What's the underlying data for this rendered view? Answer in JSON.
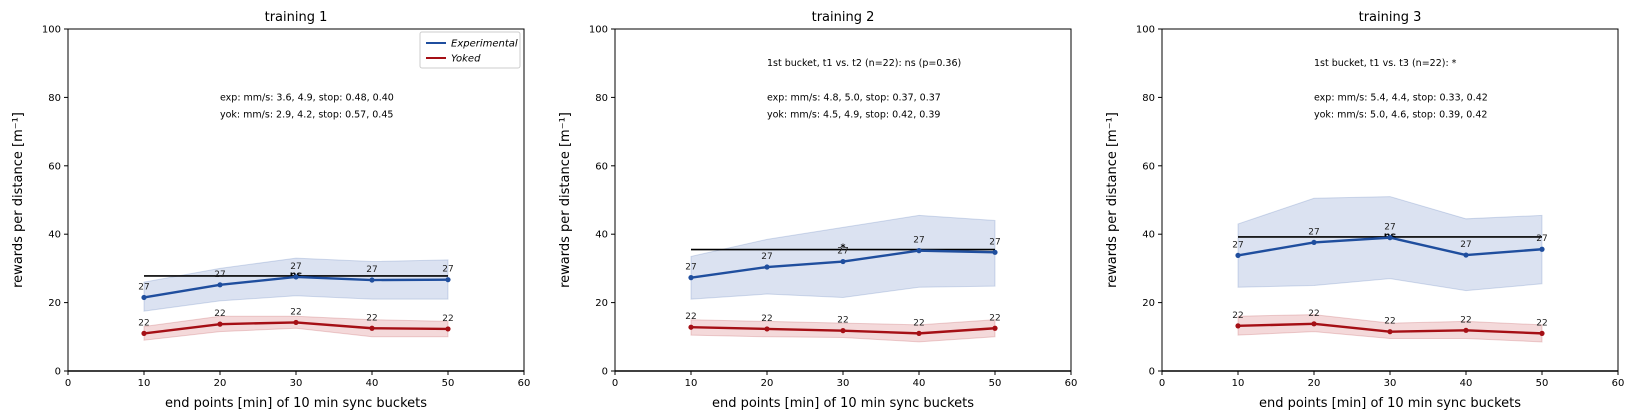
{
  "chart_data": [
    {
      "type": "line",
      "title": "training 1",
      "xlabel": "end points [min] of 10 min sync buckets",
      "ylabel": "rewards per distance [m⁻¹]",
      "xlim": [
        0,
        60
      ],
      "ylim": [
        0,
        100
      ],
      "xticks": [
        0,
        10,
        20,
        30,
        40,
        50,
        60
      ],
      "yticks": [
        0,
        20,
        40,
        60,
        80,
        100
      ],
      "x": [
        10,
        20,
        30,
        40,
        50
      ],
      "series": [
        {
          "name": "Experimental",
          "color": "#1f4e9e",
          "band_color": "#c5d1e8",
          "values": [
            21.5,
            25.2,
            27.5,
            26.6,
            26.7
          ],
          "lower": [
            17.5,
            20.5,
            22.0,
            21.0,
            21.0
          ],
          "upper": [
            26.0,
            30.0,
            33.0,
            32.0,
            32.5
          ],
          "n": [
            27,
            27,
            27,
            27,
            27
          ]
        },
        {
          "name": "Yoked",
          "color": "#a50f15",
          "band_color": "#eec1c3",
          "values": [
            11.0,
            13.7,
            14.2,
            12.5,
            12.3
          ],
          "lower": [
            9.0,
            11.5,
            12.5,
            10.0,
            10.0
          ],
          "upper": [
            13.0,
            16.0,
            16.0,
            15.0,
            14.5
          ],
          "n": [
            22,
            22,
            22,
            22,
            22
          ]
        }
      ],
      "significance": {
        "y": 27.8,
        "x_start": 10,
        "x_end": 50,
        "label": "ns",
        "label_x": 30
      },
      "annotations": [
        {
          "text": "exp: mm/s: 3.6, 4.9, stop: 0.48, 0.40",
          "x": 20,
          "y": 80
        },
        {
          "text": "yok: mm/s: 2.9, 4.2, stop: 0.57, 0.45",
          "x": 20,
          "y": 75
        }
      ],
      "legend": {
        "placement": "top-right",
        "entries": [
          "Experimental",
          "Yoked"
        ]
      },
      "grid": false
    },
    {
      "type": "line",
      "title": "training 2",
      "xlabel": "end points [min] of 10 min sync buckets",
      "ylabel": "rewards per distance [m⁻¹]",
      "xlim": [
        0,
        60
      ],
      "ylim": [
        0,
        100
      ],
      "xticks": [
        0,
        10,
        20,
        30,
        40,
        50,
        60
      ],
      "yticks": [
        0,
        20,
        40,
        60,
        80,
        100
      ],
      "x": [
        10,
        20,
        30,
        40,
        50
      ],
      "series": [
        {
          "name": "Experimental",
          "color": "#1f4e9e",
          "band_color": "#c5d1e8",
          "values": [
            27.3,
            30.4,
            32.0,
            35.2,
            34.7
          ],
          "lower": [
            21.0,
            22.5,
            21.5,
            24.5,
            24.8
          ],
          "upper": [
            33.5,
            38.5,
            42.0,
            45.5,
            44.0
          ],
          "n": [
            27,
            27,
            27,
            27,
            27
          ]
        },
        {
          "name": "Yoked",
          "color": "#a50f15",
          "band_color": "#eec1c3",
          "values": [
            12.8,
            12.3,
            11.8,
            11.0,
            12.5
          ],
          "lower": [
            10.5,
            10.0,
            9.8,
            8.5,
            10.0
          ],
          "upper": [
            15.0,
            14.5,
            14.0,
            13.5,
            15.0
          ],
          "n": [
            22,
            22,
            22,
            22,
            22
          ]
        }
      ],
      "significance": {
        "y": 35.5,
        "x_start": 10,
        "x_end": 50,
        "label": "*",
        "label_x": 30
      },
      "annotations": [
        {
          "text": "1st bucket, t1 vs. t2 (n=22): ns (p=0.36)",
          "x": 20,
          "y": 90
        },
        {
          "text": "exp: mm/s: 4.8, 5.0, stop: 0.37, 0.37",
          "x": 20,
          "y": 80
        },
        {
          "text": "yok: mm/s: 4.5, 4.9, stop: 0.42, 0.39",
          "x": 20,
          "y": 75
        }
      ],
      "grid": false
    },
    {
      "type": "line",
      "title": "training 3",
      "xlabel": "end points [min] of 10 min sync buckets",
      "ylabel": "rewards per distance [m⁻¹]",
      "xlim": [
        0,
        60
      ],
      "ylim": [
        0,
        100
      ],
      "xticks": [
        0,
        10,
        20,
        30,
        40,
        50,
        60
      ],
      "yticks": [
        0,
        20,
        40,
        60,
        80,
        100
      ],
      "x": [
        10,
        20,
        30,
        40,
        50
      ],
      "series": [
        {
          "name": "Experimental",
          "color": "#1f4e9e",
          "band_color": "#c5d1e8",
          "values": [
            33.8,
            37.6,
            39.0,
            33.9,
            35.6
          ],
          "lower": [
            24.5,
            25.0,
            27.0,
            23.5,
            25.5
          ],
          "upper": [
            43.0,
            50.5,
            51.0,
            44.5,
            45.5
          ],
          "n": [
            27,
            27,
            27,
            27,
            27
          ]
        },
        {
          "name": "Yoked",
          "color": "#a50f15",
          "band_color": "#eec1c3",
          "values": [
            13.2,
            13.8,
            11.5,
            11.9,
            11.0
          ],
          "lower": [
            10.5,
            11.5,
            9.5,
            9.5,
            8.5
          ],
          "upper": [
            16.0,
            16.5,
            14.0,
            14.5,
            13.5
          ],
          "n": [
            22,
            22,
            22,
            22,
            22
          ]
        }
      ],
      "significance": {
        "y": 39.2,
        "x_start": 10,
        "x_end": 50,
        "label": "ns",
        "label_x": 30
      },
      "annotations": [
        {
          "text": "1st bucket, t1 vs. t3 (n=22): *",
          "x": 20,
          "y": 90
        },
        {
          "text": "exp: mm/s: 5.4, 4.4, stop: 0.33, 0.42",
          "x": 20,
          "y": 80
        },
        {
          "text": "yok: mm/s: 5.0, 4.6, stop: 0.39, 0.42",
          "x": 20,
          "y": 75
        }
      ],
      "grid": false
    }
  ]
}
